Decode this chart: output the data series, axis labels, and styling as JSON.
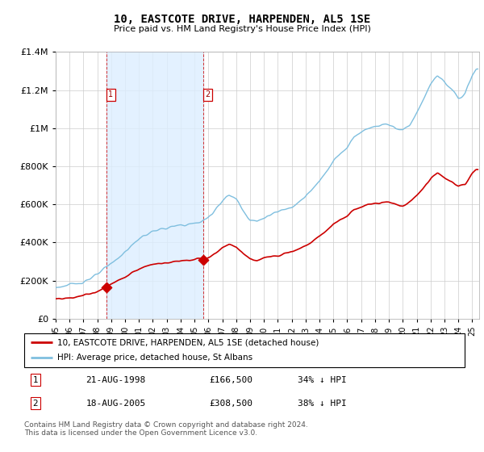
{
  "title": "10, EASTCOTE DRIVE, HARPENDEN, AL5 1SE",
  "subtitle": "Price paid vs. HM Land Registry's House Price Index (HPI)",
  "hpi_label": "HPI: Average price, detached house, St Albans",
  "property_label": "10, EASTCOTE DRIVE, HARPENDEN, AL5 1SE (detached house)",
  "footnote": "Contains HM Land Registry data © Crown copyright and database right 2024.\nThis data is licensed under the Open Government Licence v3.0.",
  "transactions": [
    {
      "id": 1,
      "date": "21-AUG-1998",
      "price": 166500,
      "pct": "34%",
      "dir": "↓"
    },
    {
      "id": 2,
      "date": "18-AUG-2005",
      "price": 308500,
      "pct": "38%",
      "dir": "↓"
    }
  ],
  "transaction_years": [
    1998.64,
    2005.63
  ],
  "transaction_prices": [
    166500,
    308500
  ],
  "hpi_color": "#7fbfdf",
  "property_color": "#cc0000",
  "shaded_color": "#ddeeff",
  "ylim": [
    0,
    1400000
  ],
  "xlim_start": 1995.0,
  "xlim_end": 2025.5,
  "bg_color": "#f0f0f0"
}
